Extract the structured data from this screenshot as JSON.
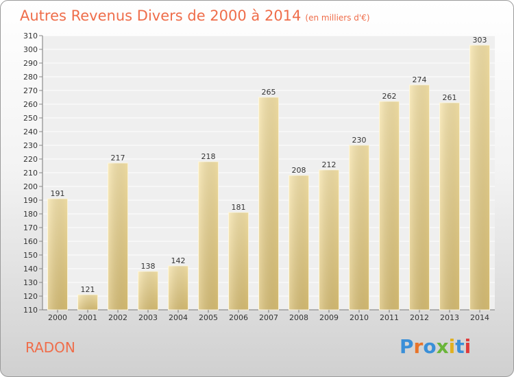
{
  "header": {
    "title": "Autres Revenus Divers de 2000 à 2014",
    "subtitle": "(en milliers d'€)"
  },
  "commune_name": "RADON",
  "logo_text": "Proxiti",
  "colors": {
    "title": "#ef6d4a",
    "bar_light": "#f5e2a6",
    "bar_dark": "#d7bd72",
    "logo": [
      "#3a8fd8",
      "#e8742a",
      "#3a8fd8",
      "#6ab53a",
      "#e0b020",
      "#3a8fd8",
      "#e03a3a"
    ]
  },
  "chart_data": {
    "type": "bar",
    "categories": [
      "2000",
      "2001",
      "2002",
      "2003",
      "2004",
      "2005",
      "2006",
      "2007",
      "2008",
      "2009",
      "2010",
      "2011",
      "2012",
      "2013",
      "2014"
    ],
    "values": [
      191,
      121,
      217,
      138,
      142,
      218,
      181,
      265,
      208,
      212,
      230,
      262,
      274,
      261,
      303
    ],
    "title": "Autres Revenus Divers de 2000 à 2014",
    "xlabel": "",
    "ylabel": "",
    "ylim": [
      110,
      310
    ],
    "yticks": [
      110,
      120,
      130,
      140,
      150,
      160,
      170,
      180,
      190,
      200,
      210,
      220,
      230,
      240,
      250,
      260,
      270,
      280,
      290,
      300,
      310
    ],
    "grid": true,
    "data_labels": true
  }
}
